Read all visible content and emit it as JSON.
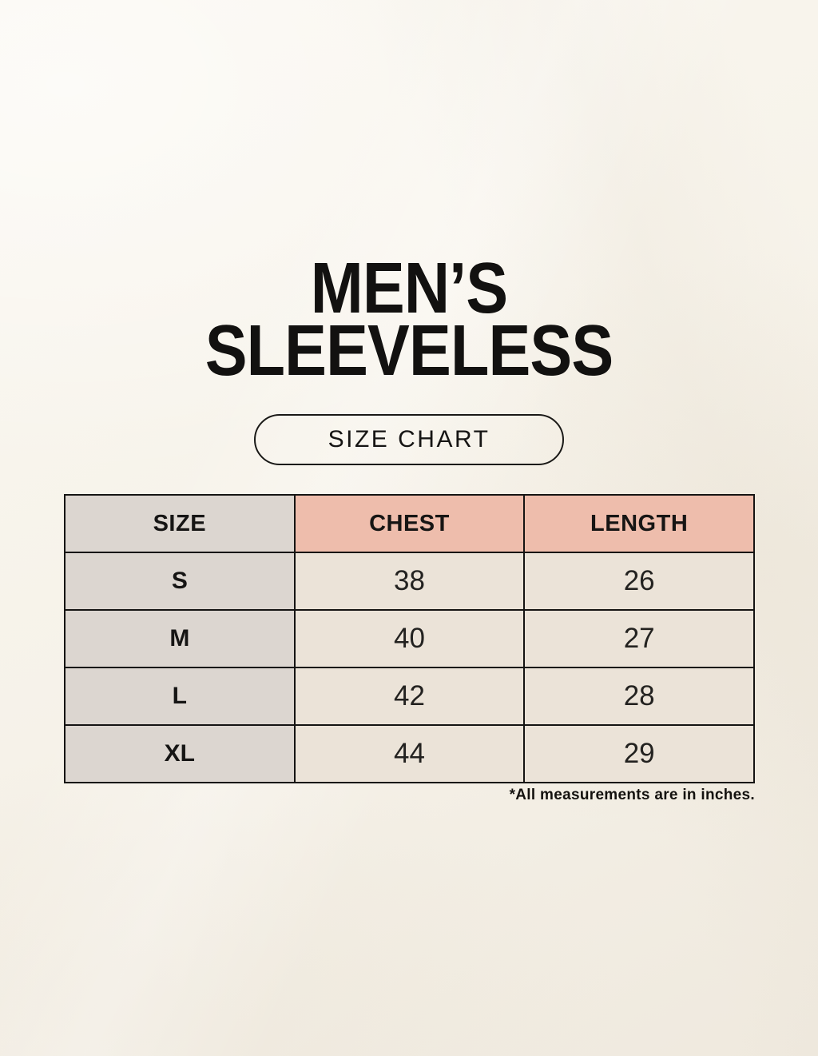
{
  "page": {
    "title": {
      "line1": "MEN’S",
      "line2": "SLEEVELESS"
    },
    "badge_label": "SIZE CHART",
    "footnote": "*All measurements are in inches."
  },
  "chart_data": {
    "type": "table",
    "title": "MEN’S SLEEVELESS",
    "subtitle": "SIZE CHART",
    "units_note": "*All measurements are in inches.",
    "columns": [
      "SIZE",
      "CHEST",
      "LENGTH"
    ],
    "rows": [
      {
        "size": "S",
        "chest": "38",
        "length": "26"
      },
      {
        "size": "M",
        "chest": "40",
        "length": "27"
      },
      {
        "size": "L",
        "chest": "42",
        "length": "28"
      },
      {
        "size": "XL",
        "chest": "44",
        "length": "29"
      }
    ]
  },
  "colors": {
    "page_background": "#f6f2e9",
    "size_column_bg": "#dcd6d0",
    "measure_header_bg": "#eebdac",
    "data_cell_bg": "#ebe3d8",
    "border": "#151413",
    "text": "#161514"
  }
}
